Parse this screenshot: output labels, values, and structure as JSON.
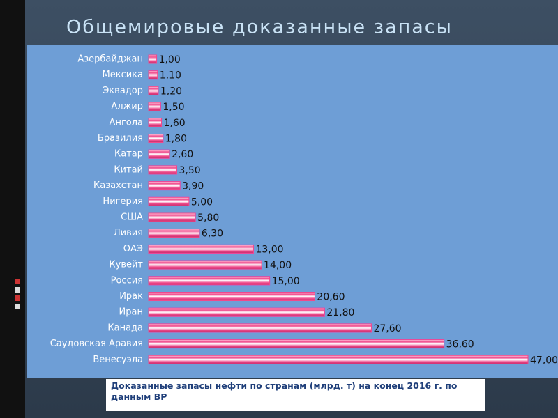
{
  "chart_data": {
    "type": "barh",
    "title": "Общемировые доказанные запасы",
    "caption": "Доказанные запасы нефти по странам (млрд. т) на конец 2016 г. по данным ВР",
    "categories": [
      "Азербайджан",
      "Мексика",
      "Эквадор",
      "Алжир",
      "Ангола",
      "Бразилия",
      "Катар",
      "Китай",
      "Казахстан",
      "Нигерия",
      "США",
      "Ливия",
      "ОАЭ",
      "Кувейт",
      "Россия",
      "Ирак",
      "Иран",
      "Канада",
      "Саудовская Аравия",
      "Венесуэла"
    ],
    "values": [
      1.0,
      1.1,
      1.2,
      1.5,
      1.6,
      1.8,
      2.6,
      3.5,
      3.9,
      5.0,
      5.8,
      6.3,
      13.0,
      14.0,
      15.0,
      20.6,
      21.8,
      27.6,
      36.6,
      47.0
    ],
    "value_labels": [
      "1,00",
      "1,10",
      "1,20",
      "1,50",
      "1,60",
      "1,80",
      "2,60",
      "3,50",
      "3,90",
      "5,00",
      "5,80",
      "6,30",
      "13,00",
      "14,00",
      "15,00",
      "20,60",
      "21,80",
      "27,60",
      "36,60",
      "47,00"
    ],
    "color": "#f04a8c"
  }
}
